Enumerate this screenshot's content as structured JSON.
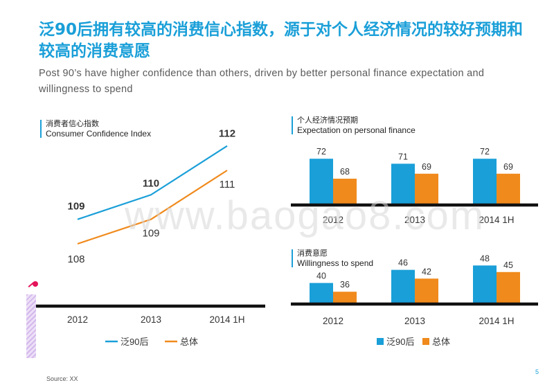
{
  "title_cn": "泛90后拥有较高的消费信心指数，源于对个人经济情况的较好预期和较高的消费意愿",
  "title_en": "Post 90’s have higher confidence than others, driven by better personal finance expectation and willingness  to spend",
  "watermark": "www.baogao8.com",
  "source": "Source: XX",
  "page_number": "5",
  "colors": {
    "post90": "#1a9fd8",
    "total": "#f08a1c",
    "title": "#1a9fd8",
    "axis": "#111111"
  },
  "chart_data": [
    {
      "type": "line",
      "title_cn": "消费者信心指数",
      "title_en": "Consumer Confidence Index",
      "categories": [
        "2012",
        "2013",
        "2014 1H"
      ],
      "series": [
        {
          "name": "泛90后",
          "values": [
            109,
            110,
            112
          ]
        },
        {
          "name": "总体",
          "values": [
            108,
            109,
            111
          ]
        }
      ],
      "ylim": [
        106.5,
        112.5
      ],
      "legend": "bottom"
    },
    {
      "type": "bar",
      "title_cn": "个人经济情况预期",
      "title_en": "Expectation on personal finance",
      "categories": [
        "2012",
        "2013",
        "2014 1H"
      ],
      "series": [
        {
          "name": "泛90后",
          "values": [
            72,
            71,
            72
          ]
        },
        {
          "name": "总体",
          "values": [
            68,
            69,
            69
          ]
        }
      ],
      "ylim": [
        63,
        73
      ]
    },
    {
      "type": "bar",
      "title_cn": "消费意愿",
      "title_en": "Willingness to spend",
      "categories": [
        "2012",
        "2013",
        "2014 1H"
      ],
      "series": [
        {
          "name": "泛90后",
          "values": [
            40,
            46,
            48
          ]
        },
        {
          "name": "总体",
          "values": [
            36,
            42,
            45
          ]
        }
      ],
      "ylim": [
        31,
        50
      ],
      "legend": "bottom"
    }
  ]
}
